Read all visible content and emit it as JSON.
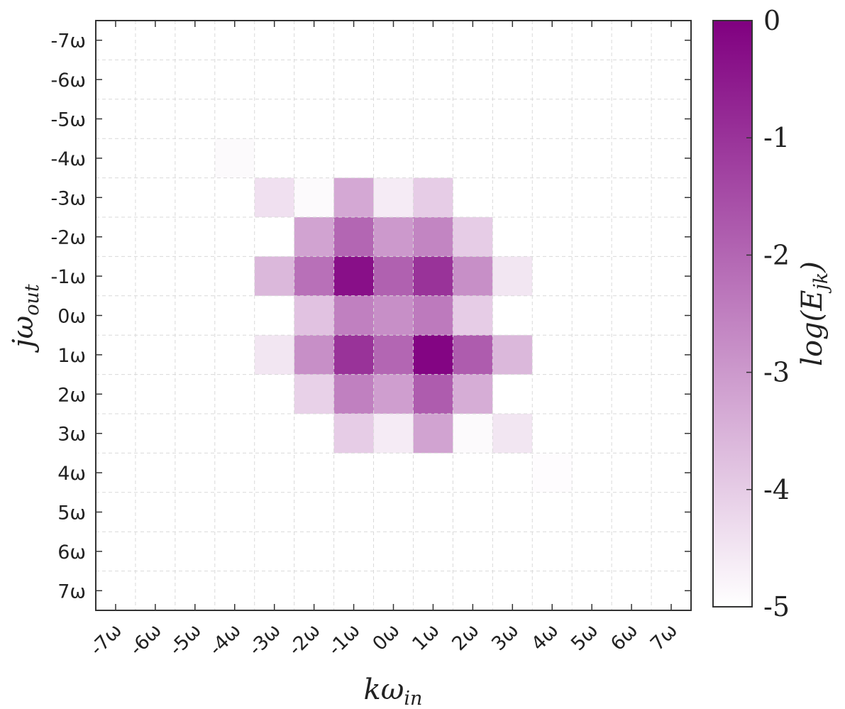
{
  "chart_data": {
    "type": "heatmap",
    "xlabel": "kω",
    "xlabel_sub": "in",
    "ylabel": "jω",
    "ylabel_sub": "out",
    "colorbar_label": "log(E",
    "colorbar_label_sub": "jk",
    "colorbar_label_close": ")",
    "x_tick_labels": [
      "-7ω",
      "-6ω",
      "-5ω",
      "-4ω",
      "-3ω",
      "-2ω",
      "-1ω",
      "0ω",
      "1ω",
      "2ω",
      "3ω",
      "4ω",
      "5ω",
      "6ω",
      "7ω"
    ],
    "y_tick_labels": [
      "-7ω",
      "-6ω",
      "-5ω",
      "-4ω",
      "-3ω",
      "-2ω",
      "-1ω",
      "0ω",
      "1ω",
      "2ω",
      "3ω",
      "4ω",
      "5ω",
      "6ω",
      "7ω"
    ],
    "x_values": [
      -7,
      -6,
      -5,
      -4,
      -3,
      -2,
      -1,
      0,
      1,
      2,
      3,
      4,
      5,
      6,
      7
    ],
    "y_values": [
      -7,
      -6,
      -5,
      -4,
      -3,
      -2,
      -1,
      0,
      1,
      2,
      3,
      4,
      5,
      6,
      7
    ],
    "y_axis_inverted": true,
    "colorbar_ticks": [
      0,
      -1,
      -2,
      -3,
      -4,
      -5
    ],
    "colorbar_tick_labels": [
      "0",
      "-1",
      "-2",
      "-3",
      "-4",
      "-5"
    ],
    "vmin": -5,
    "vmax": 0,
    "colormap": [
      "#ffffff",
      "#800080"
    ],
    "grid": true,
    "values": [
      [
        -5,
        -5,
        -5,
        -5,
        -5,
        -5,
        -5,
        -5,
        -5,
        -5,
        -5,
        -5,
        -5,
        -5,
        -5
      ],
      [
        -5,
        -5,
        -5,
        -5,
        -5,
        -5,
        -5,
        -5,
        -5,
        -5,
        -5,
        -5,
        -5,
        -5,
        -5
      ],
      [
        -5,
        -5,
        -5,
        -5,
        -5,
        -5,
        -5,
        -5,
        -5,
        -5,
        -5,
        -5,
        -5,
        -5,
        -5
      ],
      [
        -5,
        -5,
        -5,
        -4.9,
        -5,
        -5,
        -5,
        -5,
        -5,
        -5,
        -5,
        -5,
        -5,
        -5,
        -5
      ],
      [
        -5,
        -5,
        -5,
        -5,
        -4.4,
        -4.9,
        -3.3,
        -4.6,
        -4.0,
        -5,
        -5,
        -5,
        -5,
        -5,
        -5
      ],
      [
        -5,
        -5,
        -5,
        -5,
        -5,
        -3.2,
        -2.0,
        -3.0,
        -2.6,
        -4.0,
        -5,
        -5,
        -5,
        -5,
        -5
      ],
      [
        -5,
        -5,
        -5,
        -5,
        -3.6,
        -2.2,
        -0.3,
        -1.9,
        -1.0,
        -2.8,
        -4.5,
        -5,
        -5,
        -5,
        -5
      ],
      [
        -5,
        -5,
        -5,
        -5,
        -5,
        -3.8,
        -2.5,
        -2.8,
        -2.4,
        -4.0,
        -5,
        -5,
        -5,
        -5,
        -5
      ],
      [
        -5,
        -5,
        -5,
        -5,
        -4.5,
        -2.8,
        -1.0,
        -2.0,
        -0.1,
        -1.8,
        -3.6,
        -5,
        -5,
        -5,
        -5
      ],
      [
        -5,
        -5,
        -5,
        -5,
        -5,
        -4.1,
        -2.5,
        -3.1,
        -1.8,
        -3.4,
        -5,
        -5,
        -5,
        -5,
        -5
      ],
      [
        -5,
        -5,
        -5,
        -5,
        -5,
        -5,
        -4.0,
        -4.6,
        -3.2,
        -4.9,
        -4.5,
        -5,
        -5,
        -5,
        -5
      ],
      [
        -5,
        -5,
        -5,
        -5,
        -5,
        -5,
        -5,
        -5,
        -5,
        -5,
        -5,
        -4.95,
        -5,
        -5,
        -5
      ],
      [
        -5,
        -5,
        -5,
        -5,
        -5,
        -5,
        -5,
        -5,
        -5,
        -5,
        -5,
        -5,
        -5,
        -5,
        -5
      ],
      [
        -5,
        -5,
        -5,
        -5,
        -5,
        -5,
        -5,
        -5,
        -5,
        -5,
        -5,
        -5,
        -5,
        -5,
        -5
      ],
      [
        -5,
        -5,
        -5,
        -5,
        -5,
        -5,
        -5,
        -5,
        -5,
        -5,
        -5,
        -5,
        -5,
        -5,
        -5
      ]
    ]
  }
}
